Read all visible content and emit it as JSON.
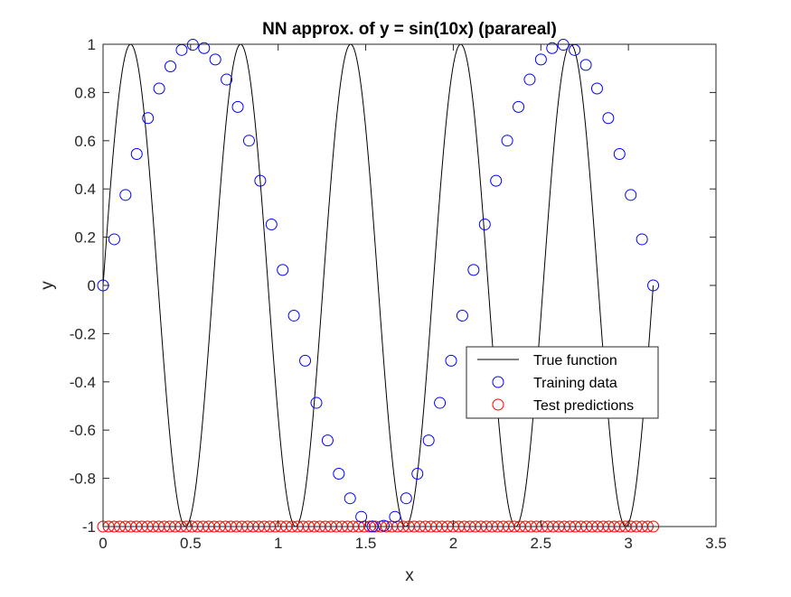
{
  "chart_data": {
    "type": "scatter",
    "title": "NN approx. of y = sin(10x) (parareal)",
    "xlabel": "x",
    "ylabel": "y",
    "xlim": [
      0,
      3.5
    ],
    "ylim": [
      -1,
      1
    ],
    "xticks": [
      0,
      0.5,
      1,
      1.5,
      2,
      2.5,
      3,
      3.5
    ],
    "xtick_labels": [
      "0",
      "0.5",
      "1",
      "1.5",
      "2",
      "2.5",
      "3",
      "3.5"
    ],
    "yticks": [
      1,
      0.8,
      0.6,
      0.4,
      0.2,
      0,
      -0.2,
      -0.4,
      -0.6,
      -0.8,
      -1
    ],
    "ytick_labels": [
      "1",
      "0.8",
      "0.6",
      "0.4",
      "0.2",
      "0",
      "-0.2",
      "-0.4",
      "-0.6",
      "-0.8",
      "-1"
    ],
    "grid": false,
    "legend_position": "lower-right",
    "series": [
      {
        "name": "True function",
        "kind": "line",
        "color": "#000000",
        "function": "sin(10x)",
        "x_range": [
          0,
          3.1416
        ]
      },
      {
        "name": "Training data",
        "kind": "marker",
        "marker": "circle",
        "color": "#0000ff",
        "x": [
          0,
          0.0641,
          0.1282,
          0.1923,
          0.2565,
          0.3206,
          0.3847,
          0.4488,
          0.5129,
          0.577,
          0.6411,
          0.7052,
          0.7694,
          0.8335,
          0.8976,
          0.9617,
          1.0258,
          1.0899,
          1.154,
          1.2182,
          1.2823,
          1.3464,
          1.4105,
          1.4746,
          1.5387,
          1.6028,
          1.6669,
          1.7311,
          1.7952,
          1.8593,
          1.9234,
          1.9875,
          2.0516,
          2.1157,
          2.1799,
          2.244,
          2.3081,
          2.3722,
          2.4363,
          2.5004,
          2.5645,
          2.6286,
          2.6928,
          2.7569,
          2.821,
          2.8851,
          2.9492,
          3.0133,
          3.0774,
          3.1416
        ],
        "y": [
          0,
          0.1912,
          0.3752,
          0.5449,
          0.6939,
          0.8164,
          0.9082,
          0.9763,
          0.9979,
          0.9842,
          0.9369,
          0.8537,
          0.7401,
          0.6004,
          0.4341,
          0.2527,
          0.0641,
          -0.1253,
          -0.3123,
          -0.4871,
          -0.6427,
          -0.7808,
          -0.8828,
          -0.9595,
          -0.9996,
          -0.9965,
          -0.9595,
          -0.8828,
          -0.7808,
          -0.6427,
          -0.4871,
          -0.3123,
          -0.1253,
          0.0641,
          0.2527,
          0.4341,
          0.6004,
          0.7401,
          0.8537,
          0.9369,
          0.9842,
          0.9979,
          0.9763,
          0.9143,
          0.8164,
          0.6939,
          0.5449,
          0.3752,
          0.1912,
          0
        ]
      },
      {
        "name": "Test predictions",
        "kind": "marker",
        "marker": "circle",
        "color": "#ff0000",
        "x_range": [
          0,
          3.1416
        ],
        "count": 100,
        "y_constant": -1
      }
    ]
  }
}
